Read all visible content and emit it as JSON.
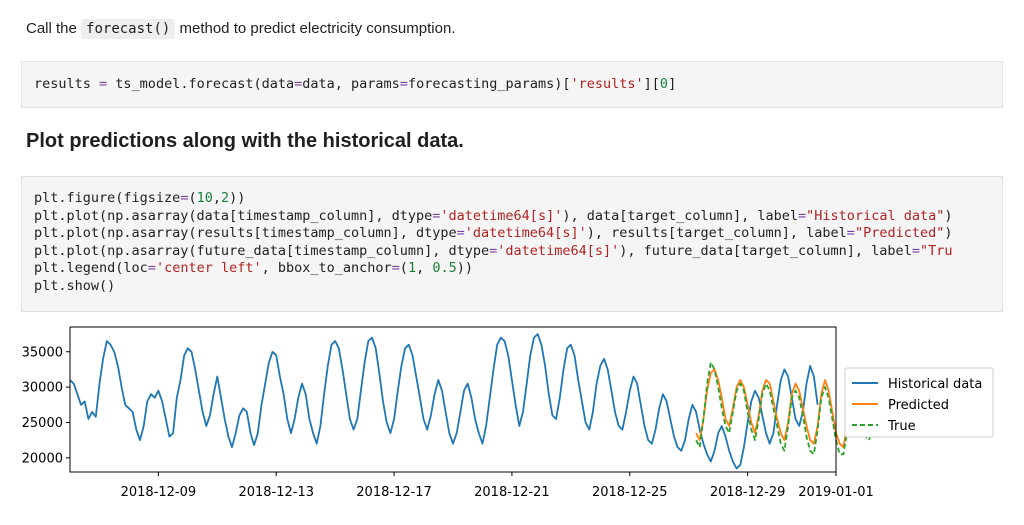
{
  "markdown1": {
    "prefix": "Call the ",
    "code": "forecast()",
    "suffix": " method to predict electricity consumption."
  },
  "code1": {
    "p1": "results ",
    "p2": "=",
    "p3": " ts_model.forecast(data",
    "p4": "=",
    "p5": "data, params",
    "p6": "=",
    "p7": "forecasting_params)[",
    "p8": "'results'",
    "p9": "][",
    "p10": "0",
    "p11": "]"
  },
  "heading": "Plot predictions along with the historical data.",
  "code2": {
    "l1a": "plt.figure(figsize",
    "l1b": "=",
    "l1c": "(",
    "l1d": "10",
    "l1e": ",",
    "l1f": "2",
    "l1g": "))",
    "l2a": "plt.plot(np.asarray(data[timestamp_column], dtype",
    "l2b": "=",
    "l2c": "'datetime64[s]'",
    "l2d": "), data[target_column], label",
    "l2e": "=",
    "l2f": "\"Historical data\"",
    "l2g": ")",
    "l3a": "plt.plot(np.asarray(results[timestamp_column], dtype",
    "l3b": "=",
    "l3c": "'datetime64[s]'",
    "l3d": "), results[target_column], label",
    "l3e": "=",
    "l3f": "\"Predicted\"",
    "l3g": ")",
    "l4a": "plt.plot(np.asarray(future_data[timestamp_column], dtype",
    "l4b": "=",
    "l4c": "'datetime64[s]'",
    "l4d": "), future_data[target_column], label",
    "l4e": "=",
    "l4f": "\"Tru",
    "l5a": "plt.legend(loc",
    "l5b": "=",
    "l5c": "'center left'",
    "l5d": ", bbox_to_anchor",
    "l5e": "=",
    "l5f": "(",
    "l5g": "1",
    "l5h": ", ",
    "l5i": "0.5",
    "l5j": "))",
    "l6": "plt.show()"
  },
  "chart_data": {
    "type": "line",
    "x_type": "datetime",
    "x_range": [
      "2018-12-06T00:00",
      "2019-01-01T00:00"
    ],
    "xticks": [
      "2018-12-09",
      "2018-12-13",
      "2018-12-17",
      "2018-12-21",
      "2018-12-25",
      "2018-12-29",
      "2019-01-01"
    ],
    "yticks": [
      "20000",
      "25000",
      "30000",
      "35000"
    ],
    "ylim": [
      18000,
      38500
    ],
    "legend_position": "outside-right",
    "grid": false,
    "series": [
      {
        "name": "Historical data",
        "color": "#1f77b4",
        "style": "solid",
        "x_start": "2018-12-06T00:00",
        "x_step_hours": 3,
        "values": [
          31000,
          30500,
          29000,
          27500,
          28000,
          25500,
          26500,
          25800,
          30500,
          34000,
          36500,
          36000,
          35000,
          33000,
          30000,
          27500,
          27000,
          26500,
          24000,
          22500,
          24500,
          28000,
          29000,
          28500,
          29500,
          28000,
          25500,
          23000,
          23500,
          28500,
          31000,
          34500,
          35500,
          35000,
          32500,
          29500,
          26500,
          24500,
          26000,
          29000,
          31500,
          28500,
          25500,
          23000,
          21500,
          23500,
          26000,
          27000,
          26500,
          23500,
          21800,
          23500,
          27500,
          30500,
          33500,
          35000,
          34500,
          31500,
          29000,
          25500,
          23500,
          25500,
          28500,
          30500,
          29000,
          25500,
          23500,
          22000,
          24500,
          29000,
          33000,
          36000,
          36500,
          35500,
          32500,
          29000,
          25500,
          24000,
          25500,
          29500,
          33500,
          36500,
          37000,
          35500,
          32000,
          28000,
          25000,
          23500,
          25500,
          29500,
          33000,
          35500,
          36000,
          34500,
          31500,
          28500,
          25500,
          24000,
          26000,
          29000,
          31000,
          29500,
          26500,
          23500,
          22000,
          23500,
          26500,
          29500,
          30500,
          28500,
          25500,
          23500,
          22000,
          24500,
          28500,
          32500,
          36000,
          37000,
          36500,
          34500,
          31000,
          27500,
          24500,
          26500,
          30500,
          34500,
          37000,
          37500,
          36000,
          33000,
          29000,
          26000,
          25500,
          28500,
          32500,
          35500,
          36000,
          34500,
          31000,
          28000,
          25000,
          24000,
          26500,
          30500,
          33000,
          34000,
          32500,
          29500,
          26500,
          24500,
          24000,
          26500,
          29500,
          31500,
          30500,
          27500,
          24500,
          22500,
          22000,
          24000,
          27000,
          29000,
          28000,
          25500,
          23000,
          21500,
          21000,
          22500,
          25500,
          27500,
          26500,
          24000,
          22000,
          20500,
          19500,
          21000,
          23500,
          24500,
          23000,
          21000,
          19500,
          18500,
          19000,
          21500,
          25000,
          28000,
          29500,
          28500,
          26000,
          23500,
          22000,
          23500,
          27500,
          31000,
          32500,
          31500,
          28500,
          25500,
          24500,
          26500,
          30500,
          33000,
          31500,
          27500
        ]
      },
      {
        "name": "Predicted",
        "color": "#ff7f0e",
        "style": "solid",
        "x_start": "2018-12-27T06:00",
        "x_step_hours": 3,
        "values": [
          23500,
          22500,
          25500,
          29500,
          32000,
          32500,
          31000,
          28500,
          25500,
          24500,
          27000,
          30000,
          31000,
          30000,
          27500,
          25000,
          23500,
          26000,
          29500,
          31000,
          30500,
          28000,
          25500,
          23500,
          22500,
          25000,
          29000,
          30500,
          29500,
          27000,
          24500,
          22500,
          22000,
          24500,
          29000,
          31000,
          29500,
          26500,
          23500,
          22000,
          21500,
          24500,
          29000,
          30500,
          29500,
          26500,
          24500,
          23500,
          25500,
          29500,
          31500,
          30000,
          27500
        ]
      },
      {
        "name": "True",
        "color": "#2ca02c",
        "style": "dashed",
        "x_start": "2018-12-27T06:00",
        "x_step_hours": 3,
        "values": [
          22500,
          21500,
          25500,
          30500,
          33500,
          32500,
          30000,
          27000,
          24500,
          23500,
          26500,
          29500,
          30500,
          29500,
          26500,
          24000,
          22500,
          25500,
          29000,
          30500,
          29500,
          27000,
          24500,
          22000,
          21000,
          24500,
          28500,
          29500,
          28500,
          26000,
          23000,
          21000,
          20500,
          24000,
          28500,
          30000,
          28500,
          25500,
          22500,
          20500,
          20500,
          23500,
          28000,
          29500,
          28500,
          25500,
          23000,
          22500,
          25000,
          28500,
          30000,
          27500,
          24500
        ]
      }
    ]
  }
}
